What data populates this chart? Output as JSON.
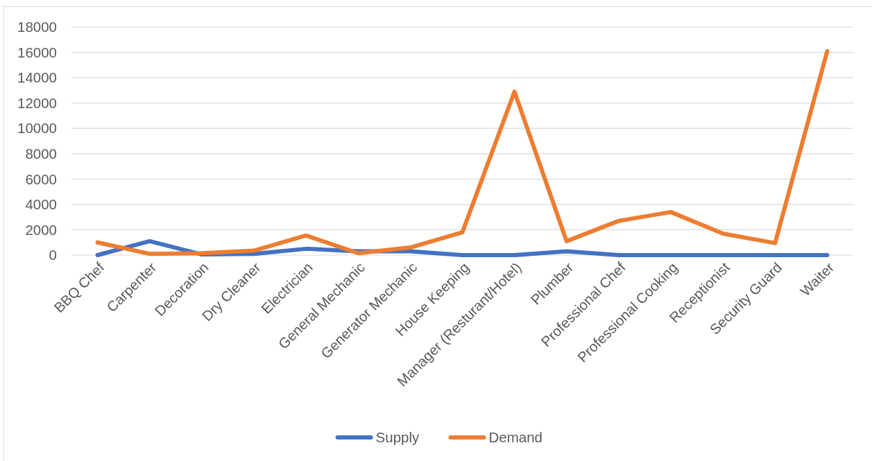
{
  "chart_data": {
    "type": "line",
    "categories": [
      "BBQ Chef",
      "Carpenter",
      "Decoration",
      "Dry Cleaner",
      "Electrician",
      "General Mechanic",
      "Generator Mechanic",
      "House Keeping",
      "Manager (Resturant/Hotel)",
      "Plumber",
      "Professional Chef",
      "Professional Cooking",
      "Receptionist",
      "Security Guard",
      "Waiter"
    ],
    "series": [
      {
        "name": "Supply",
        "color": "#4472c4",
        "values": [
          0,
          1100,
          50,
          100,
          500,
          300,
          300,
          0,
          0,
          300,
          0,
          0,
          0,
          0,
          0
        ]
      },
      {
        "name": "Demand",
        "color": "#ed7d31",
        "values": [
          1000,
          100,
          150,
          350,
          1550,
          150,
          600,
          1800,
          12900,
          1100,
          2700,
          3400,
          1700,
          950,
          16100
        ]
      }
    ],
    "ylim": [
      0,
      18000
    ],
    "yticks": [
      0,
      2000,
      4000,
      6000,
      8000,
      10000,
      12000,
      14000,
      16000,
      18000
    ],
    "grid": "y",
    "legend": "bottom"
  }
}
